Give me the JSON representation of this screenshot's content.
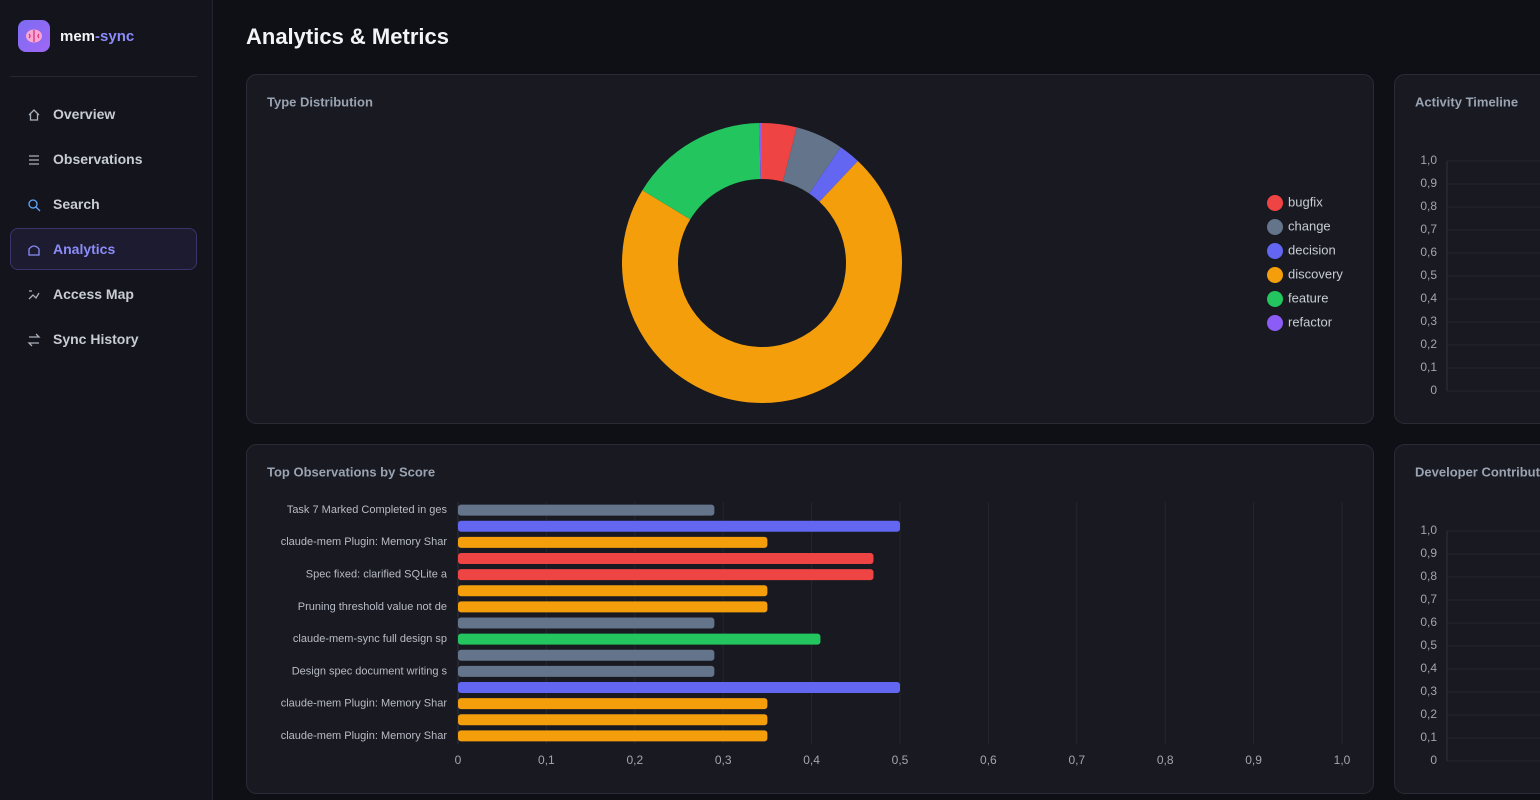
{
  "sidebar": {
    "brand": [
      "mem",
      "-sync"
    ],
    "nav": [
      "Overview",
      "Observations",
      "Search",
      "Analytics",
      "Access Map",
      "Sync History"
    ],
    "active": "Analytics"
  },
  "header": {
    "title": "Analytics & Metrics"
  },
  "chart_data": [
    {
      "type": "pie",
      "title": "Type Distribution",
      "donut": true,
      "categories": [
        "bugfix",
        "change",
        "decision",
        "discovery",
        "feature",
        "refactor"
      ],
      "values": [
        4,
        5.5,
        2.5,
        71.7,
        16,
        0.3
      ],
      "colors": [
        "#ef4444",
        "#64748b",
        "#6366f1",
        "#f59e0b",
        "#22c55e",
        "#8b5cf6"
      ],
      "legend": "right"
    },
    {
      "type": "line",
      "title": "Activity Timeline",
      "series": [],
      "ylim": [
        0,
        1
      ],
      "yticks": [
        0,
        {
          "value": 0.1,
          "label": "0,1"
        },
        {
          "value": 0.2,
          "label": "0,2"
        },
        {
          "value": 0.3,
          "label": "0,3"
        },
        {
          "value": 0.4,
          "label": "0,4"
        },
        {
          "value": 0.5,
          "label": "0,5"
        },
        {
          "value": 0.6,
          "label": "0,6"
        },
        {
          "value": 0.7,
          "label": "0,7"
        },
        {
          "value": 0.8,
          "label": "0,8"
        },
        {
          "value": 0.9,
          "label": "0,9"
        },
        {
          "value": 1,
          "label": "1,0"
        }
      ],
      "grid": true
    },
    {
      "type": "hbar",
      "title": "Top Observations by Score",
      "categories": [
        "Task 7 Marked Completed in ges",
        null,
        "claude-mem Plugin: Memory Shar",
        null,
        "Spec fixed: clarified SQLite a",
        null,
        "Pruning threshold value not de",
        null,
        "claude-mem-sync full design sp",
        null,
        "Design spec document writing s",
        null,
        "claude-mem Plugin: Memory Shar",
        null,
        "claude-mem Plugin: Memory Shar"
      ],
      "values": [
        0.29,
        0.5,
        0.35,
        0.47,
        0.47,
        0.35,
        0.35,
        0.29,
        0.41,
        0.29,
        0.29,
        0.5,
        0.35,
        0.35,
        0.35
      ],
      "colors": [
        "#64748b",
        "#6366f1",
        "#f59e0b",
        "#ef4444",
        "#ef4444",
        "#f59e0b",
        "#f59e0b",
        "#64748b",
        "#22c55e",
        "#64748b",
        "#64748b",
        "#6366f1",
        "#f59e0b",
        "#f59e0b",
        "#f59e0b"
      ],
      "xlim": [
        0,
        1
      ],
      "xticks": [
        0,
        {
          "value": 0.1,
          "label": "0,1"
        },
        {
          "value": 0.2,
          "label": "0,2"
        },
        {
          "value": 0.3,
          "label": "0,3"
        },
        {
          "value": 0.4,
          "label": "0,4"
        },
        {
          "value": 0.5,
          "label": "0,5"
        },
        {
          "value": 0.6,
          "label": "0,6"
        },
        {
          "value": 0.7,
          "label": "0,7"
        },
        {
          "value": 0.8,
          "label": "0,8"
        },
        {
          "value": 0.9,
          "label": "0,9"
        },
        {
          "value": 1,
          "label": "1,0"
        }
      ],
      "grid": true
    },
    {
      "type": "line",
      "title": "Developer Contribut",
      "series": [],
      "ylim": [
        0,
        1
      ],
      "yticks": [
        0,
        {
          "value": 0.1,
          "label": "0,1"
        },
        {
          "value": 0.2,
          "label": "0,2"
        },
        {
          "value": 0.3,
          "label": "0,3"
        },
        {
          "value": 0.4,
          "label": "0,4"
        },
        {
          "value": 0.5,
          "label": "0,5"
        },
        {
          "value": 0.6,
          "label": "0,6"
        },
        {
          "value": 0.7,
          "label": "0,7"
        },
        {
          "value": 0.8,
          "label": "0,8"
        },
        {
          "value": 0.9,
          "label": "0,9"
        },
        {
          "value": 1,
          "label": "1,0"
        }
      ],
      "grid": true
    }
  ]
}
